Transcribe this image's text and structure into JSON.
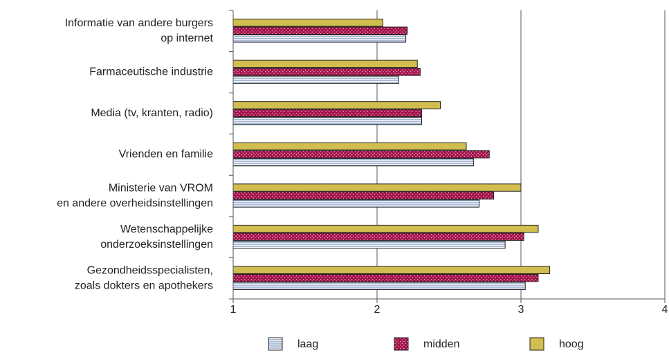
{
  "chart_data": {
    "type": "hbar",
    "categories": [
      [
        "Informatie van andere burgers",
        "op internet"
      ],
      [
        "Farmaceutische industrie"
      ],
      [
        "Media (tv, kranten, radio)"
      ],
      [
        "Vrienden en familie"
      ],
      [
        "Ministerie van VROM",
        "en andere overheidsinstellingen"
      ],
      [
        "Wetenschappelijke",
        "onderzoeksinstellingen"
      ],
      [
        "Gezondheidsspecialisten,",
        "zoals dokters en apothekers"
      ]
    ],
    "series": [
      {
        "name": "laag",
        "color": "#5a78b0",
        "values": [
          2.2,
          2.15,
          2.31,
          2.67,
          2.71,
          2.89,
          3.03
        ]
      },
      {
        "name": "midden",
        "color": "#a3124b",
        "values": [
          2.21,
          2.3,
          2.31,
          2.78,
          2.81,
          3.02,
          3.12
        ]
      },
      {
        "name": "hoog",
        "color": "#d2bd4f",
        "values": [
          2.04,
          2.28,
          2.44,
          2.62,
          3.0,
          3.12,
          3.2
        ]
      }
    ],
    "xlim": [
      1,
      4
    ],
    "xticks": [
      1,
      2,
      3,
      4
    ],
    "grid": true
  }
}
